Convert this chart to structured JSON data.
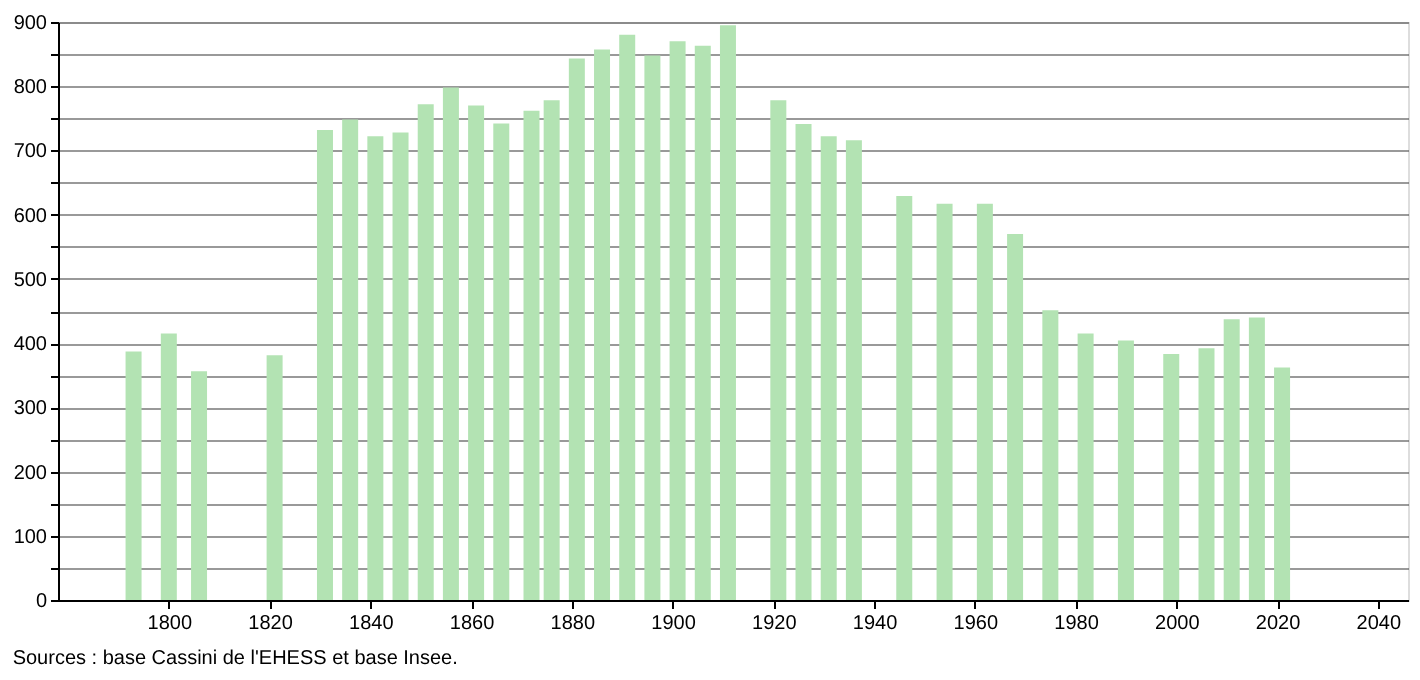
{
  "chart_data": {
    "type": "bar",
    "x": [
      1793,
      1800,
      1806,
      1821,
      1831,
      1836,
      1841,
      1846,
      1851,
      1856,
      1861,
      1866,
      1872,
      1876,
      1881,
      1886,
      1891,
      1896,
      1901,
      1906,
      1911,
      1921,
      1926,
      1931,
      1936,
      1946,
      1954,
      1962,
      1968,
      1975,
      1982,
      1990,
      1999,
      2006,
      2011,
      2016,
      2021
    ],
    "values": [
      387,
      415,
      356,
      381,
      732,
      748,
      722,
      728,
      772,
      798,
      770,
      742,
      762,
      778,
      843,
      857,
      880,
      848,
      870,
      863,
      895,
      778,
      741,
      722,
      716,
      629,
      617,
      617,
      570,
      451,
      415,
      404,
      383,
      392,
      437,
      440,
      362
    ],
    "color": "#b3e3b3",
    "xlim": [
      1778,
      2046
    ],
    "xticks": [
      1800,
      1820,
      1840,
      1860,
      1880,
      1900,
      1920,
      1940,
      1960,
      1980,
      2000,
      2020,
      2040
    ],
    "ylim": [
      0,
      900
    ],
    "yticks": [
      0,
      {
        "value": 50,
        "label": null
      },
      100,
      {
        "value": 150,
        "label": null
      },
      200,
      {
        "value": 250,
        "label": null
      },
      300,
      {
        "value": 350,
        "label": null
      },
      400,
      {
        "value": 450,
        "label": null
      },
      500,
      {
        "value": 550,
        "label": null
      },
      600,
      {
        "value": 650,
        "label": null
      },
      700,
      {
        "value": 750,
        "label": null
      },
      800,
      {
        "value": 850,
        "label": null
      },
      900
    ],
    "grid": "y",
    "annotations": [
      "Sources : base Cassini de l'EHESS et base Insee."
    ]
  }
}
